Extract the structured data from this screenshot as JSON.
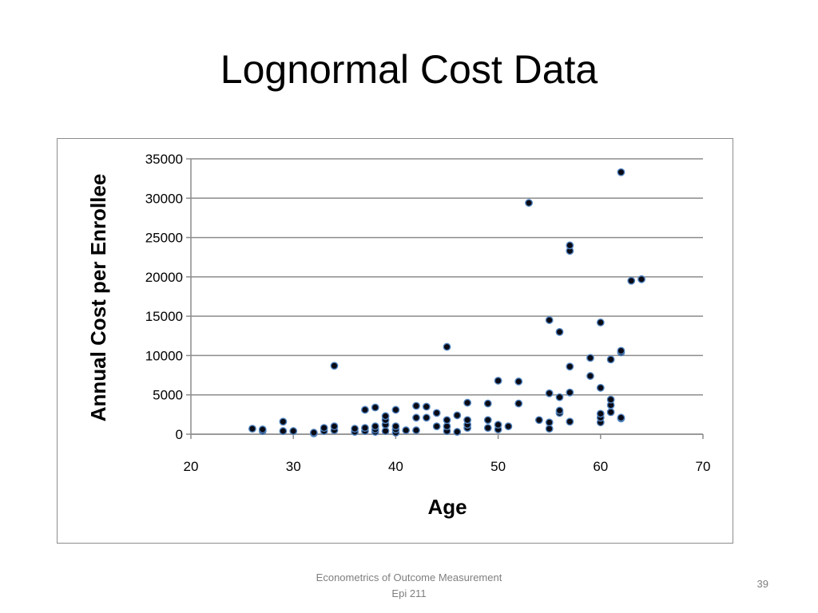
{
  "slide": {
    "title": "Lognormal Cost Data",
    "footer_line1": "Econometrics of Outcome Measurement",
    "footer_line2": "Epi 211",
    "page_number": "39"
  },
  "colors": {
    "point_fill": "#0a0a14",
    "point_stroke": "#4f81bd",
    "gridline": "#8c8c8c",
    "axis": "#8c8c8c"
  },
  "chart_data": {
    "type": "scatter",
    "title": "",
    "xlabel": "Age",
    "ylabel": "Annual Cost per Enrollee",
    "xlim": [
      20,
      70
    ],
    "ylim": [
      0,
      35000
    ],
    "xticks": [
      20,
      30,
      40,
      50,
      60,
      70
    ],
    "yticks": [
      0,
      5000,
      10000,
      15000,
      20000,
      25000,
      30000,
      35000
    ],
    "grid": "horizontal",
    "legend": "none",
    "points": [
      [
        26,
        700
      ],
      [
        27,
        400
      ],
      [
        27,
        600
      ],
      [
        29,
        1600
      ],
      [
        29,
        400
      ],
      [
        30,
        400
      ],
      [
        32,
        100
      ],
      [
        32,
        200
      ],
      [
        33,
        400
      ],
      [
        33,
        800
      ],
      [
        34,
        500
      ],
      [
        34,
        1000
      ],
      [
        34,
        8700
      ],
      [
        36,
        300
      ],
      [
        36,
        700
      ],
      [
        37,
        400
      ],
      [
        37,
        800
      ],
      [
        37,
        3100
      ],
      [
        38,
        300
      ],
      [
        38,
        600
      ],
      [
        38,
        1000
      ],
      [
        38,
        3400
      ],
      [
        39,
        400
      ],
      [
        39,
        1200
      ],
      [
        39,
        1800
      ],
      [
        39,
        2300
      ],
      [
        40,
        200
      ],
      [
        40,
        600
      ],
      [
        40,
        1000
      ],
      [
        40,
        3100
      ],
      [
        41,
        500
      ],
      [
        42,
        500
      ],
      [
        42,
        2100
      ],
      [
        42,
        3600
      ],
      [
        43,
        2100
      ],
      [
        43,
        3500
      ],
      [
        44,
        1000
      ],
      [
        44,
        2700
      ],
      [
        45,
        400
      ],
      [
        45,
        1000
      ],
      [
        45,
        1800
      ],
      [
        45,
        11100
      ],
      [
        46,
        300
      ],
      [
        46,
        2400
      ],
      [
        47,
        800
      ],
      [
        47,
        1200
      ],
      [
        47,
        1800
      ],
      [
        47,
        4000
      ],
      [
        49,
        800
      ],
      [
        49,
        1800
      ],
      [
        49,
        3900
      ],
      [
        50,
        600
      ],
      [
        50,
        1200
      ],
      [
        50,
        6800
      ],
      [
        51,
        1000
      ],
      [
        52,
        3900
      ],
      [
        52,
        6700
      ],
      [
        53,
        29400
      ],
      [
        54,
        1800
      ],
      [
        55,
        700
      ],
      [
        55,
        1500
      ],
      [
        55,
        5200
      ],
      [
        55,
        14500
      ],
      [
        56,
        2700
      ],
      [
        56,
        3000
      ],
      [
        56,
        4700
      ],
      [
        56,
        13000
      ],
      [
        57,
        1600
      ],
      [
        57,
        5300
      ],
      [
        57,
        8600
      ],
      [
        57,
        23300
      ],
      [
        57,
        24000
      ],
      [
        59,
        7400
      ],
      [
        59,
        9700
      ],
      [
        60,
        1500
      ],
      [
        60,
        2100
      ],
      [
        60,
        2600
      ],
      [
        60,
        5900
      ],
      [
        60,
        14200
      ],
      [
        61,
        2800
      ],
      [
        61,
        3700
      ],
      [
        61,
        4400
      ],
      [
        61,
        9500
      ],
      [
        62,
        2000
      ],
      [
        62,
        2100
      ],
      [
        62,
        10400
      ],
      [
        62,
        10600
      ],
      [
        62,
        33300
      ],
      [
        63,
        19500
      ],
      [
        64,
        19700
      ]
    ]
  }
}
